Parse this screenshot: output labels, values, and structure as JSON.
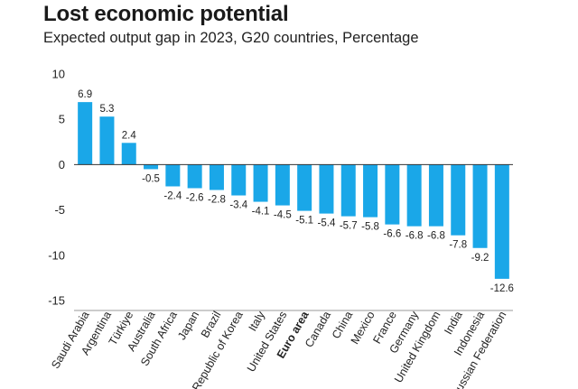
{
  "chart_data": {
    "type": "bar",
    "title": "Lost economic potential",
    "subtitle": "Expected output gap in 2023, G20 countries, Percentage",
    "xlabel": "",
    "ylabel": "",
    "ylim": [
      -15,
      10
    ],
    "yticks": [
      10,
      5,
      0,
      -5,
      -10,
      -15
    ],
    "grid": false,
    "bar_color": "#1aa7e8",
    "highlight_category": "Euro area",
    "categories": [
      "Saudi Arabia",
      "Argentina",
      "Türkiye",
      "Australia",
      "South Africa",
      "Japan",
      "Brazil",
      "Republic of Korea",
      "Italy",
      "United States",
      "Euro area",
      "Canada",
      "China",
      "Mexico",
      "France",
      "Germany",
      "United Kingdom",
      "India",
      "Indonesia",
      "Russian Federation"
    ],
    "values": [
      6.9,
      5.3,
      2.4,
      -0.5,
      -2.4,
      -2.6,
      -2.8,
      -3.4,
      -4.1,
      -4.5,
      -5.1,
      -5.4,
      -5.7,
      -5.8,
      -6.6,
      -6.8,
      -6.8,
      -7.8,
      -9.2,
      -12.6
    ],
    "value_labels": [
      "6.9",
      "5.3",
      "2.4",
      "-0.5",
      "-2.4",
      "-2.6",
      "-2.8",
      "-3.4",
      "-4.1",
      "-4.5",
      "-5.1",
      "-5.4",
      "-5.7",
      "-5.8",
      "-6.6",
      "-6.8",
      "-6.8",
      "-7.8",
      "-9.2",
      "-12.6"
    ]
  }
}
